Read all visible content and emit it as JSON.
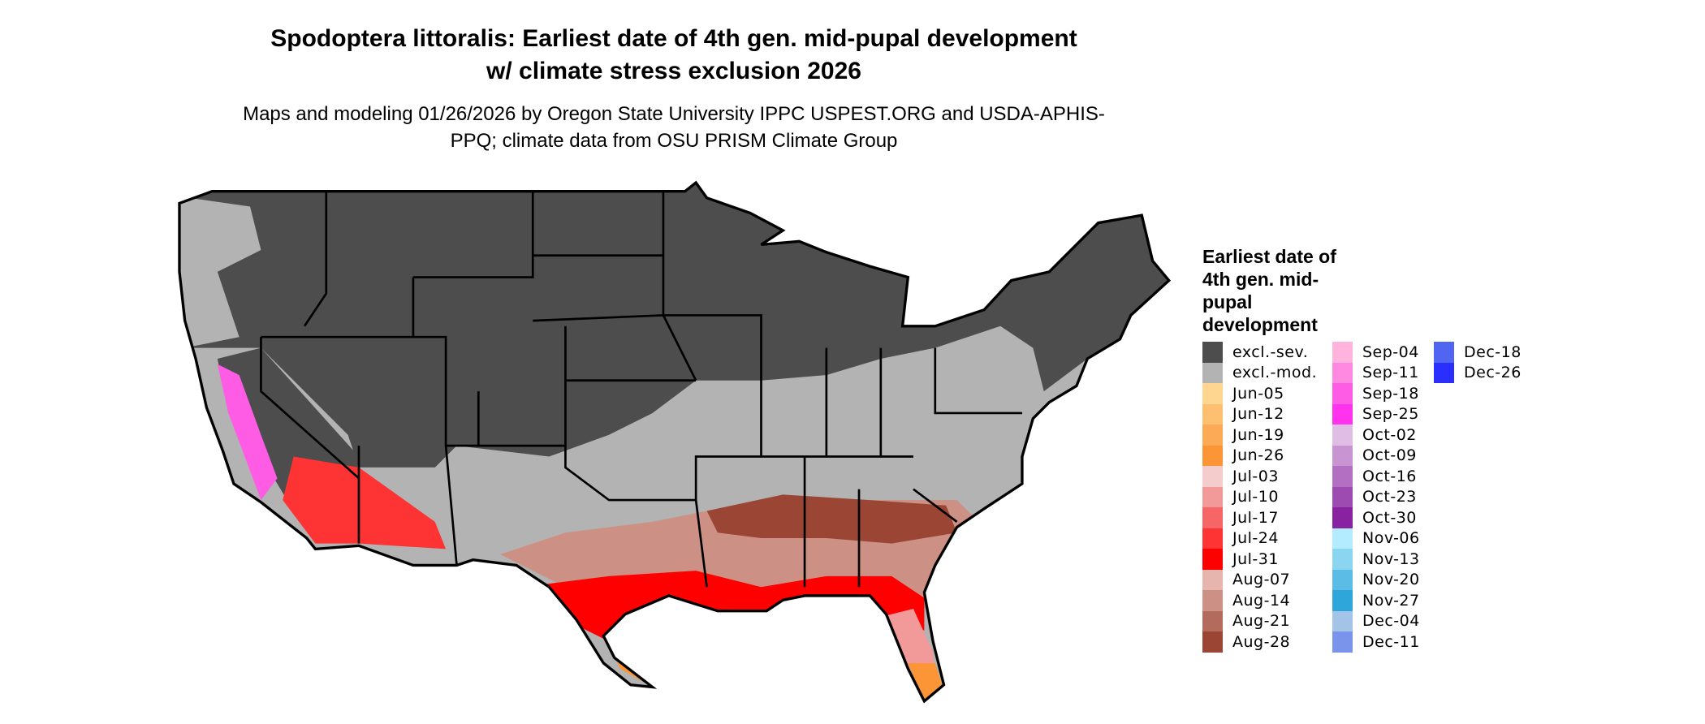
{
  "title": "Spodoptera littoralis: Earliest date of 4th gen. mid-pupal development w/ climate stress exclusion 2026",
  "subtitle": "Maps and modeling 01/26/2026 by Oregon State University IPPC USPEST.ORG and USDA-APHIS-PPQ; climate data from OSU PRISM Climate Group",
  "legend": {
    "title": "Earliest date of 4th gen. mid-pupal development",
    "columns": [
      [
        {
          "label": "excl.-sev.",
          "color": "#4d4d4d"
        },
        {
          "label": "excl.-mod.",
          "color": "#b3b3b3"
        },
        {
          "label": "Jun-05",
          "color": "#fed690"
        },
        {
          "label": "Jun-12",
          "color": "#fdc070"
        },
        {
          "label": "Jun-19",
          "color": "#fcaa55"
        },
        {
          "label": "Jun-26",
          "color": "#fc9535"
        },
        {
          "label": "Jul-03",
          "color": "#f5cccc"
        },
        {
          "label": "Jul-10",
          "color": "#f29999"
        },
        {
          "label": "Jul-17",
          "color": "#f66666"
        },
        {
          "label": "Jul-24",
          "color": "#fe3333"
        },
        {
          "label": "Jul-31",
          "color": "#ff0000"
        },
        {
          "label": "Aug-07",
          "color": "#e6b5ad"
        },
        {
          "label": "Aug-14",
          "color": "#cc9084"
        },
        {
          "label": "Aug-21",
          "color": "#b36b5c"
        },
        {
          "label": "Aug-28",
          "color": "#9b4634"
        }
      ],
      [
        {
          "label": "Sep-04",
          "color": "#ffb3dd"
        },
        {
          "label": "Sep-11",
          "color": "#ff88e0"
        },
        {
          "label": "Sep-18",
          "color": "#ff5ce6"
        },
        {
          "label": "Sep-25",
          "color": "#ff33ee"
        },
        {
          "label": "Oct-02",
          "color": "#e0bde4"
        },
        {
          "label": "Oct-09",
          "color": "#c994d2"
        },
        {
          "label": "Oct-16",
          "color": "#b36fc2"
        },
        {
          "label": "Oct-23",
          "color": "#9d4ab1"
        },
        {
          "label": "Oct-30",
          "color": "#8822a1"
        },
        {
          "label": "Nov-06",
          "color": "#b3ebff"
        },
        {
          "label": "Nov-13",
          "color": "#8ad5f0"
        },
        {
          "label": "Nov-20",
          "color": "#5bbde6"
        },
        {
          "label": "Nov-27",
          "color": "#2ea6d9"
        },
        {
          "label": "Dec-04",
          "color": "#a3c4e6"
        },
        {
          "label": "Dec-11",
          "color": "#7a93eb"
        }
      ],
      [
        {
          "label": "Dec-18",
          "color": "#5066f0"
        },
        {
          "label": "Dec-26",
          "color": "#2a2eff"
        }
      ]
    ]
  }
}
